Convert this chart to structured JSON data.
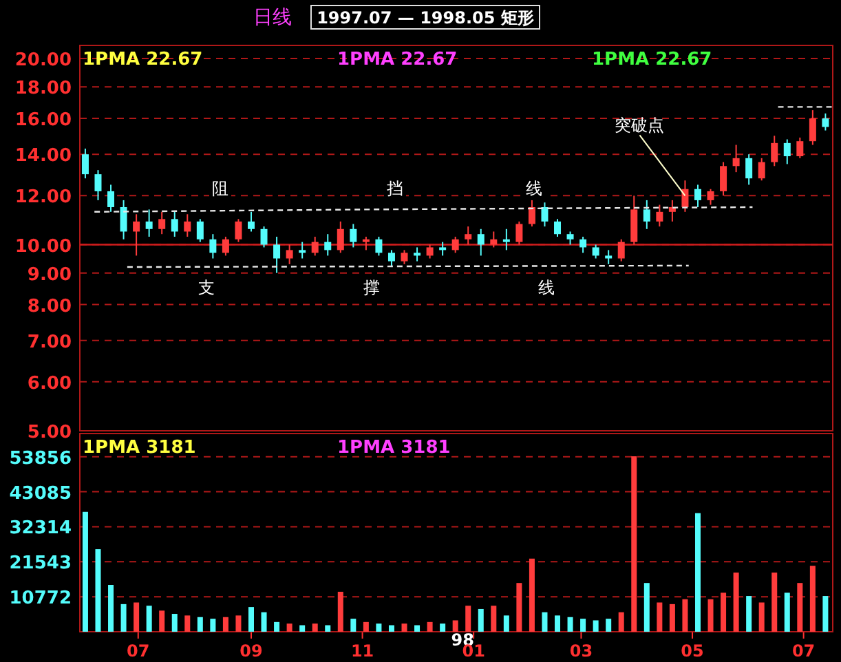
{
  "chart_data": [
    {
      "type": "candlestick",
      "title": "日线",
      "subtitle": "1997.07 — 1998.05 矩形",
      "log": true,
      "grid": "y",
      "tick_labels": "y",
      "xlim": [
        "1997-05-30",
        "1998-07-17"
      ],
      "ylim": [
        5,
        21
      ],
      "yticks": [
        {
          "value": 5,
          "label": "5.00"
        },
        {
          "value": 6,
          "label": "6.00"
        },
        {
          "value": 7,
          "label": "7.00"
        },
        {
          "value": 8,
          "label": "8.00"
        },
        {
          "value": 9,
          "label": "9.00"
        },
        {
          "value": 10,
          "label": "10.00"
        },
        {
          "value": 12,
          "label": "12.00"
        },
        {
          "value": 14,
          "label": "14.00"
        },
        {
          "value": 16,
          "label": "16.00"
        },
        {
          "value": 18,
          "label": "18.00"
        },
        {
          "value": 20,
          "label": "20.00"
        }
      ],
      "x": [
        "1997-06-02",
        "1997-06-09",
        "1997-06-16",
        "1997-06-23",
        "1997-06-30",
        "1997-07-07",
        "1997-07-14",
        "1997-07-21",
        "1997-07-28",
        "1997-08-04",
        "1997-08-11",
        "1997-08-18",
        "1997-08-25",
        "1997-09-01",
        "1997-09-08",
        "1997-09-15",
        "1997-09-22",
        "1997-09-29",
        "1997-10-06",
        "1997-10-13",
        "1997-10-20",
        "1997-10-27",
        "1997-11-03",
        "1997-11-10",
        "1997-11-17",
        "1997-11-24",
        "1997-12-01",
        "1997-12-08",
        "1997-12-15",
        "1997-12-22",
        "1997-12-29",
        "1998-01-05",
        "1998-01-12",
        "1998-01-19",
        "1998-01-26",
        "1998-02-02",
        "1998-02-09",
        "1998-02-16",
        "1998-02-23",
        "1998-03-02",
        "1998-03-09",
        "1998-03-16",
        "1998-03-23",
        "1998-03-30",
        "1998-04-06",
        "1998-04-13",
        "1998-04-20",
        "1998-04-27",
        "1998-05-04",
        "1998-05-11",
        "1998-05-18",
        "1998-05-25",
        "1998-06-01",
        "1998-06-08",
        "1998-06-15",
        "1998-06-22",
        "1998-06-29",
        "1998-07-06",
        "1998-07-13"
      ],
      "ohlc": [
        [
          14.0,
          14.3,
          12.8,
          13.0
        ],
        [
          13.0,
          13.2,
          11.8,
          12.2
        ],
        [
          12.2,
          12.5,
          11.3,
          11.5
        ],
        [
          11.5,
          11.8,
          10.2,
          10.5
        ],
        [
          10.5,
          11.2,
          9.6,
          10.9
        ],
        [
          10.9,
          11.4,
          10.3,
          10.6
        ],
        [
          10.6,
          11.3,
          10.4,
          11.0
        ],
        [
          11.0,
          11.3,
          10.3,
          10.5
        ],
        [
          10.5,
          11.2,
          10.3,
          10.9
        ],
        [
          10.9,
          11.0,
          10.1,
          10.2
        ],
        [
          10.2,
          10.4,
          9.5,
          9.7
        ],
        [
          9.7,
          10.3,
          9.6,
          10.2
        ],
        [
          10.2,
          11.0,
          10.1,
          10.9
        ],
        [
          10.9,
          11.3,
          10.5,
          10.6
        ],
        [
          10.6,
          10.7,
          9.9,
          10.0
        ],
        [
          10.0,
          10.3,
          9.0,
          9.5
        ],
        [
          9.5,
          10.0,
          9.3,
          9.8
        ],
        [
          9.8,
          10.1,
          9.5,
          9.7
        ],
        [
          9.7,
          10.3,
          9.6,
          10.1
        ],
        [
          10.1,
          10.4,
          9.6,
          9.8
        ],
        [
          9.8,
          10.9,
          9.7,
          10.6
        ],
        [
          10.6,
          10.8,
          9.9,
          10.1
        ],
        [
          10.1,
          10.3,
          9.8,
          10.2
        ],
        [
          10.2,
          10.3,
          9.6,
          9.7
        ],
        [
          9.7,
          9.8,
          9.2,
          9.4
        ],
        [
          9.4,
          9.8,
          9.3,
          9.7
        ],
        [
          9.7,
          9.9,
          9.4,
          9.6
        ],
        [
          9.6,
          10.0,
          9.5,
          9.9
        ],
        [
          9.9,
          10.1,
          9.6,
          9.8
        ],
        [
          9.8,
          10.3,
          9.7,
          10.2
        ],
        [
          10.2,
          10.7,
          10.0,
          10.4
        ],
        [
          10.4,
          10.6,
          9.6,
          10.0
        ],
        [
          10.0,
          10.5,
          9.9,
          10.2
        ],
        [
          10.2,
          10.6,
          9.8,
          10.1
        ],
        [
          10.1,
          10.9,
          10.0,
          10.8
        ],
        [
          10.8,
          11.8,
          10.7,
          11.5
        ],
        [
          11.5,
          11.7,
          10.7,
          10.9
        ],
        [
          10.9,
          11.0,
          10.3,
          10.4
        ],
        [
          10.4,
          10.5,
          10.0,
          10.2
        ],
        [
          10.2,
          10.3,
          9.7,
          9.9
        ],
        [
          9.9,
          10.0,
          9.5,
          9.6
        ],
        [
          9.6,
          9.8,
          9.3,
          9.5
        ],
        [
          9.5,
          10.2,
          9.4,
          10.1
        ],
        [
          10.1,
          12.0,
          10.0,
          11.4
        ],
        [
          11.4,
          11.8,
          10.6,
          10.9
        ],
        [
          10.9,
          11.6,
          10.7,
          11.3
        ],
        [
          11.3,
          11.8,
          10.9,
          11.5
        ],
        [
          11.5,
          12.7,
          11.3,
          12.3
        ],
        [
          12.3,
          12.5,
          11.5,
          11.8
        ],
        [
          11.8,
          12.3,
          11.6,
          12.2
        ],
        [
          12.2,
          13.6,
          12.0,
          13.4
        ],
        [
          13.4,
          14.5,
          13.1,
          13.8
        ],
        [
          13.8,
          14.0,
          12.5,
          12.8
        ],
        [
          12.8,
          13.8,
          12.7,
          13.6
        ],
        [
          13.6,
          15.0,
          13.4,
          14.6
        ],
        [
          14.6,
          14.8,
          13.5,
          13.9
        ],
        [
          13.9,
          14.9,
          13.8,
          14.7
        ],
        [
          14.7,
          16.5,
          14.5,
          16.0
        ],
        [
          16.0,
          16.3,
          15.3,
          15.5
        ]
      ],
      "series": [
        {
          "type": "line",
          "color": "#e6e6e6",
          "line_style": "dashed",
          "x": [
            "1997-06-07",
            "1997-11-03",
            "1998-06-03"
          ],
          "values": [
            11.3,
            11.4,
            11.5
          ]
        },
        {
          "type": "line",
          "color": "#e6e6e6",
          "line_style": "dashed",
          "x": [
            "1997-06-25",
            "1998-04-29"
          ],
          "values": [
            9.2,
            9.25
          ]
        },
        {
          "type": "line",
          "color": "#e6e6e6",
          "line_style": "dashed",
          "x": [
            "1998-06-17",
            "1998-07-17"
          ],
          "values": [
            16.7,
            16.7
          ]
        }
      ],
      "ref_lines": [
        {
          "axis": "y",
          "value": 10,
          "color": "#d01c1c",
          "line_style": "solid"
        }
      ],
      "annotations": [
        "1PMA  22.67",
        "1PMA  22.67",
        "1PMA  22.67",
        "阻",
        "挡",
        "线",
        "支",
        "撑",
        "线",
        {
          "text": "突破点",
          "x": "1998-04-27",
          "y": 12.0
        }
      ]
    },
    {
      "type": "bar",
      "grid": "y",
      "xlim": [
        "1997-05-30",
        "1998-07-17"
      ],
      "ylim": [
        0,
        61000
      ],
      "yticks": [
        10772,
        21543,
        32314,
        43085,
        53856
      ],
      "xticks": [
        {
          "value": "1997-07-01",
          "label": "07"
        },
        {
          "value": "1997-09-01",
          "label": "09"
        },
        {
          "value": "1997-11-01",
          "label": "11"
        },
        {
          "value": "1998-01-01",
          "label": "98\n01"
        },
        {
          "value": "1998-03-01",
          "label": "03"
        },
        {
          "value": "1998-05-01",
          "label": "05"
        },
        {
          "value": "1998-07-01",
          "label": "07"
        }
      ],
      "x": [
        "1997-06-02",
        "1997-06-09",
        "1997-06-16",
        "1997-06-23",
        "1997-06-30",
        "1997-07-07",
        "1997-07-14",
        "1997-07-21",
        "1997-07-28",
        "1997-08-04",
        "1997-08-11",
        "1997-08-18",
        "1997-08-25",
        "1997-09-01",
        "1997-09-08",
        "1997-09-15",
        "1997-09-22",
        "1997-09-29",
        "1997-10-06",
        "1997-10-13",
        "1997-10-20",
        "1997-10-27",
        "1997-11-03",
        "1997-11-10",
        "1997-11-17",
        "1997-11-24",
        "1997-12-01",
        "1997-12-08",
        "1997-12-15",
        "1997-12-22",
        "1997-12-29",
        "1998-01-05",
        "1998-01-12",
        "1998-01-19",
        "1998-01-26",
        "1998-02-02",
        "1998-02-09",
        "1998-02-16",
        "1998-02-23",
        "1998-03-02",
        "1998-03-09",
        "1998-03-16",
        "1998-03-23",
        "1998-03-30",
        "1998-04-06",
        "1998-04-13",
        "1998-04-20",
        "1998-04-27",
        "1998-05-04",
        "1998-05-11",
        "1998-05-18",
        "1998-05-25",
        "1998-06-01",
        "1998-06-08",
        "1998-06-15",
        "1998-06-22",
        "1998-06-29",
        "1998-07-06",
        "1998-07-13"
      ],
      "values": [
        36900,
        25400,
        14400,
        8500,
        9000,
        8000,
        6500,
        5500,
        5000,
        4500,
        4000,
        4500,
        5000,
        7600,
        6000,
        3000,
        2500,
        2000,
        2500,
        2000,
        12300,
        4000,
        3000,
        2500,
        2000,
        2500,
        2000,
        3000,
        2500,
        3500,
        8000,
        7000,
        8000,
        5000,
        15000,
        22500,
        6000,
        5000,
        4500,
        4000,
        3500,
        4000,
        6000,
        54000,
        15000,
        9000,
        8500,
        10000,
        36500,
        10000,
        12000,
        18200,
        11000,
        9000,
        18200,
        12000,
        15000,
        20300,
        11000
      ],
      "colors": [
        "#54fcfc",
        "#54fcfc",
        "#54fcfc",
        "#54fcfc",
        "#ff3c3c",
        "#54fcfc",
        "#ff3c3c",
        "#54fcfc",
        "#ff3c3c",
        "#54fcfc",
        "#54fcfc",
        "#ff3c3c",
        "#ff3c3c",
        "#54fcfc",
        "#54fcfc",
        "#54fcfc",
        "#ff3c3c",
        "#54fcfc",
        "#ff3c3c",
        "#54fcfc",
        "#ff3c3c",
        "#54fcfc",
        "#ff3c3c",
        "#54fcfc",
        "#54fcfc",
        "#ff3c3c",
        "#54fcfc",
        "#ff3c3c",
        "#54fcfc",
        "#ff3c3c",
        "#ff3c3c",
        "#54fcfc",
        "#ff3c3c",
        "#54fcfc",
        "#ff3c3c",
        "#ff3c3c",
        "#54fcfc",
        "#54fcfc",
        "#54fcfc",
        "#54fcfc",
        "#54fcfc",
        "#54fcfc",
        "#ff3c3c",
        "#ff3c3c",
        "#54fcfc",
        "#ff3c3c",
        "#ff3c3c",
        "#ff3c3c",
        "#54fcfc",
        "#ff3c3c",
        "#ff3c3c",
        "#ff3c3c",
        "#54fcfc",
        "#ff3c3c",
        "#ff3c3c",
        "#54fcfc",
        "#ff3c3c",
        "#ff3c3c",
        "#54fcfc"
      ],
      "annotations": [
        "1PMA  3181",
        "1PMA  3181"
      ]
    }
  ]
}
